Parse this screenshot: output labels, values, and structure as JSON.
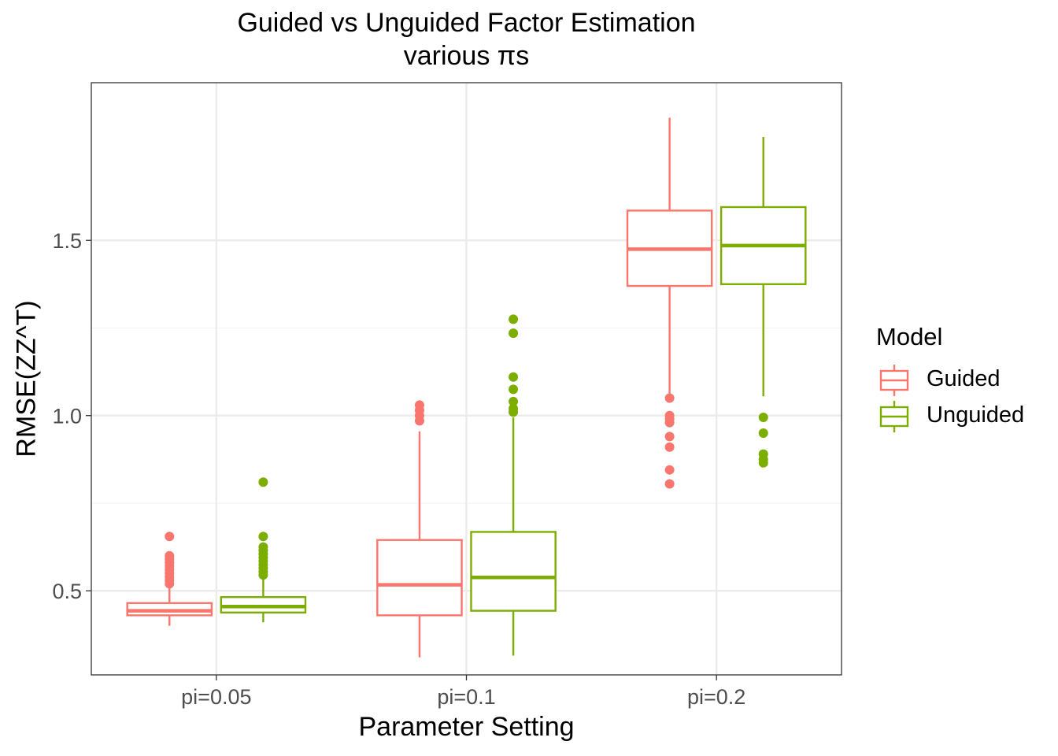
{
  "chart_data": {
    "type": "box",
    "title": "Guided vs Unguided Factor Estimation",
    "subtitle": "various πs",
    "xlabel": "Parameter Setting",
    "ylabel": "RMSE(ZZ^T)",
    "categories": [
      "pi=0.05",
      "pi=0.1",
      "pi=0.2"
    ],
    "yticks": [
      0.5,
      1.0,
      1.5
    ],
    "ytick_labels": [
      "0.5",
      "1.0",
      "1.5"
    ],
    "ylim": [
      0.26,
      1.95
    ],
    "grid": true,
    "legend": {
      "title": "Model",
      "position": "right"
    },
    "series": [
      {
        "name": "Guided",
        "color": "#F8766D",
        "boxes": [
          {
            "category": "pi=0.05",
            "whisker_low": 0.4,
            "q1": 0.43,
            "median": 0.443,
            "q3": 0.465,
            "whisker_high": 0.51,
            "outliers": [
              0.52,
              0.53,
              0.54,
              0.55,
              0.56,
              0.57,
              0.58,
              0.59,
              0.6,
              0.655
            ]
          },
          {
            "category": "pi=0.1",
            "whisker_low": 0.31,
            "q1": 0.43,
            "median": 0.517,
            "q3": 0.645,
            "whisker_high": 0.955,
            "outliers": [
              0.985,
              1.0,
              1.015,
              1.03
            ]
          },
          {
            "category": "pi=0.2",
            "whisker_low": 1.055,
            "q1": 1.37,
            "median": 1.475,
            "q3": 1.585,
            "whisker_high": 1.85,
            "outliers": [
              0.805,
              0.845,
              0.91,
              0.94,
              0.98,
              0.99,
              1.0,
              1.05
            ]
          }
        ]
      },
      {
        "name": "Unguided",
        "color": "#7CAE00",
        "boxes": [
          {
            "category": "pi=0.05",
            "whisker_low": 0.41,
            "q1": 0.438,
            "median": 0.455,
            "q3": 0.482,
            "whisker_high": 0.535,
            "outliers": [
              0.545,
              0.555,
              0.565,
              0.575,
              0.585,
              0.595,
              0.605,
              0.615,
              0.625,
              0.655,
              0.81
            ]
          },
          {
            "category": "pi=0.1",
            "whisker_low": 0.315,
            "q1": 0.443,
            "median": 0.538,
            "q3": 0.668,
            "whisker_high": 0.995,
            "outliers": [
              1.01,
              1.02,
              1.04,
              1.075,
              1.11,
              1.235,
              1.275
            ]
          },
          {
            "category": "pi=0.2",
            "whisker_low": 1.055,
            "q1": 1.375,
            "median": 1.485,
            "q3": 1.595,
            "whisker_high": 1.795,
            "outliers": [
              0.865,
              0.875,
              0.89,
              0.95,
              0.995
            ]
          }
        ]
      }
    ]
  }
}
